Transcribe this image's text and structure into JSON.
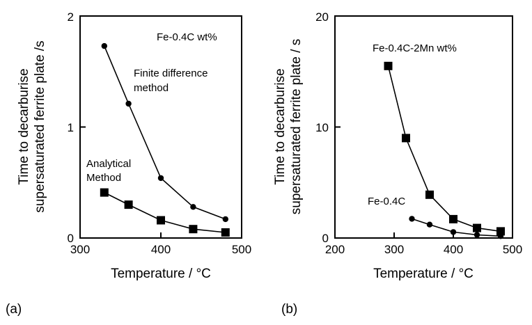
{
  "chart_data": [
    {
      "type": "line",
      "panel_label": "(a)",
      "xlabel": "Temperature / °C",
      "ylabel": [
        "Time to decarburise",
        "supersaturated ferrite plate /s"
      ],
      "xlim": [
        300,
        500
      ],
      "ylim": [
        0,
        2
      ],
      "x_ticks": [
        "300",
        "400",
        "500"
      ],
      "y_ticks": [
        "0",
        "1",
        "2"
      ],
      "annotations": [
        "Fe-0.4C wt%",
        "Finite difference",
        "method",
        "Analytical",
        "Method"
      ],
      "series": [
        {
          "name": "Finite difference method",
          "marker": "circle",
          "x": [
            330,
            360,
            400,
            440,
            480
          ],
          "y": [
            1.73,
            1.21,
            0.54,
            0.28,
            0.17
          ]
        },
        {
          "name": "Analytical Method",
          "marker": "square",
          "x": [
            330,
            360,
            400,
            440,
            480
          ],
          "y": [
            0.41,
            0.3,
            0.16,
            0.08,
            0.05
          ]
        }
      ]
    },
    {
      "type": "line",
      "panel_label": "(b)",
      "xlabel": "Temperature / °C",
      "ylabel": [
        "Time to decarburise",
        "supersaturated ferrite plate / s"
      ],
      "xlim": [
        200,
        500
      ],
      "ylim": [
        0,
        20
      ],
      "x_ticks": [
        "200",
        "300",
        "400",
        "500"
      ],
      "y_ticks": [
        "0",
        "10",
        "20"
      ],
      "annotations": [
        "Fe-0.4C-2Mn  wt%",
        "Fe-0.4C"
      ],
      "series": [
        {
          "name": "Fe-0.4C-2Mn wt%",
          "marker": "square",
          "x": [
            290,
            320,
            360,
            400,
            440,
            480
          ],
          "y": [
            15.5,
            9.0,
            3.9,
            1.7,
            0.9,
            0.6
          ]
        },
        {
          "name": "Fe-0.4C",
          "marker": "circle",
          "x": [
            330,
            360,
            400,
            440,
            480
          ],
          "y": [
            1.73,
            1.21,
            0.54,
            0.28,
            0.17
          ]
        }
      ]
    }
  ]
}
